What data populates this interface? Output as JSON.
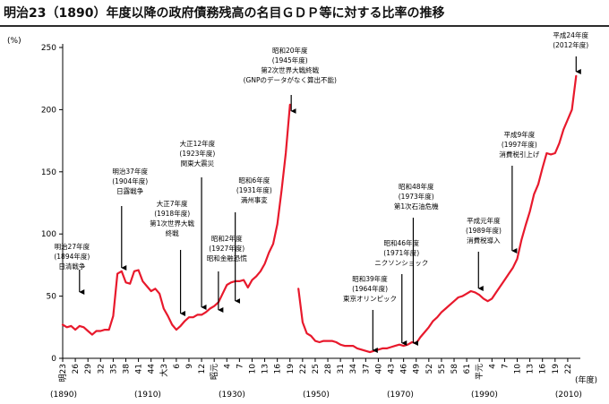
{
  "title": "明治23（1890）年度以降の政府債務残高の名目ＧＤＰ等に対する比率の推移",
  "chart_data": {
    "type": "line",
    "ylabel": "(%)",
    "xlabel": "(年度)",
    "ylim": [
      0,
      250
    ],
    "y_ticks": [
      0,
      50,
      100,
      150,
      200,
      250
    ],
    "x_ticks": [
      "明23",
      "26",
      "29",
      "32",
      "35",
      "38",
      "41",
      "44",
      "大3",
      "6",
      "9",
      "12",
      "昭元",
      "4",
      "7",
      "10",
      "13",
      "16",
      "19",
      "22",
      "25",
      "28",
      "31",
      "34",
      "37",
      "40",
      "43",
      "46",
      "49",
      "52",
      "55",
      "58",
      "61",
      "平元",
      "4",
      "7",
      "10",
      "13",
      "16",
      "19",
      "22"
    ],
    "decade_labels": [
      {
        "label": "(1890)",
        "year": 1890
      },
      {
        "label": "(1910)",
        "year": 1910
      },
      {
        "label": "(1930)",
        "year": 1930
      },
      {
        "label": "(1950)",
        "year": 1950
      },
      {
        "label": "(1970)",
        "year": 1970
      },
      {
        "label": "(1990)",
        "year": 1990
      },
      {
        "label": "(2010)",
        "year": 2010
      }
    ],
    "grid": false,
    "series": [
      {
        "color": "#e8192c",
        "segments": [
          {
            "x": [
              1890,
              1891,
              1892,
              1893,
              1894,
              1895,
              1896,
              1897,
              1898,
              1899,
              1900,
              1901,
              1902,
              1903,
              1904,
              1905,
              1906,
              1907,
              1908,
              1909,
              1910,
              1911,
              1912,
              1913,
              1914,
              1915,
              1916,
              1917,
              1918,
              1919,
              1920,
              1921,
              1922,
              1923,
              1924,
              1925,
              1926,
              1927,
              1928,
              1929,
              1930,
              1931,
              1932,
              1933,
              1934,
              1935,
              1936,
              1937,
              1938,
              1939,
              1940,
              1941,
              1942,
              1943,
              1944
            ],
            "y": [
              27,
              25,
              26,
              23,
              26,
              25,
              22,
              19,
              22,
              22,
              23,
              23,
              34,
              68,
              70,
              61,
              60,
              70,
              71,
              62,
              58,
              54,
              56,
              52,
              40,
              34,
              27,
              23,
              26,
              30,
              33,
              33,
              35,
              35,
              37,
              40,
              42,
              45,
              52,
              59,
              61,
              62,
              62,
              63,
              57,
              63,
              66,
              70,
              76,
              85,
              92,
              108,
              135,
              165,
              204
            ]
          },
          {
            "x": [
              1946,
              1947,
              1948,
              1949,
              1950,
              1951,
              1952,
              1953,
              1954,
              1955,
              1956,
              1957,
              1958,
              1959,
              1960,
              1961,
              1962,
              1963,
              1964,
              1965,
              1966,
              1967,
              1968,
              1969,
              1970,
              1971,
              1972,
              1973,
              1974,
              1975,
              1976,
              1977,
              1978,
              1979,
              1980,
              1981,
              1982,
              1983,
              1984,
              1985,
              1986,
              1987,
              1988,
              1989,
              1990,
              1991,
              1992,
              1993,
              1994,
              1995,
              1996,
              1997,
              1998,
              1999,
              2000,
              2001,
              2002,
              2003,
              2004,
              2005,
              2006,
              2007,
              2008,
              2009,
              2010,
              2011,
              2012
            ],
            "y": [
              56,
              29,
              20,
              18,
              14,
              13,
              14,
              14,
              14,
              13,
              11,
              10,
              10,
              10,
              8,
              7,
              6,
              5,
              6,
              7,
              8,
              8,
              9,
              10,
              11,
              10,
              11,
              13,
              12,
              17,
              21,
              25,
              30,
              33,
              37,
              40,
              43,
              46,
              49,
              50,
              52,
              54,
              53,
              51,
              48,
              46,
              48,
              53,
              58,
              63,
              68,
              73,
              80,
              95,
              107,
              118,
              132,
              140,
              153,
              165,
              164,
              165,
              173,
              184,
              192,
              200,
              227
            ]
          }
        ]
      }
    ],
    "annotations": [
      {
        "lines": [
          "明治27年度",
          "(1894年度)",
          "日清戦争"
        ],
        "year": 1894
      },
      {
        "lines": [
          "明治37年度",
          "(1904年度)",
          "日露戦争"
        ],
        "year": 1904
      },
      {
        "lines": [
          "大正7年度",
          "(1918年度)",
          "第1次世界大戦",
          "終戦"
        ],
        "year": 1918
      },
      {
        "lines": [
          "大正12年度",
          "(1923年度)",
          "関東大震災"
        ],
        "year": 1923
      },
      {
        "lines": [
          "昭和2年度",
          "(1927年度)",
          "昭和金融恐慌"
        ],
        "year": 1927
      },
      {
        "lines": [
          "昭和6年度",
          "(1931年度)",
          "満州事変"
        ],
        "year": 1931
      },
      {
        "lines": [
          "昭和20年度",
          "(1945年度)",
          "第2次世界大戦終戦",
          "(GNPのデータがなく算出不能)"
        ],
        "year": 1945
      },
      {
        "lines": [
          "昭和39年度",
          "(1964年度)",
          "東京オリンピック"
        ],
        "year": 1964
      },
      {
        "lines": [
          "昭和46年度",
          "(1971年度)",
          "ニクソンショック"
        ],
        "year": 1971
      },
      {
        "lines": [
          "昭和48年度",
          "(1973年度)",
          "第1次石油危機"
        ],
        "year": 1973
      },
      {
        "lines": [
          "平成元年度",
          "(1989年度)",
          "消費税導入"
        ],
        "year": 1989
      },
      {
        "lines": [
          "平成9年度",
          "(1997年度)",
          "消費税引上げ"
        ],
        "year": 1997
      },
      {
        "lines": [
          "平成24年度",
          "(2012年度)"
        ],
        "year": 2012
      }
    ]
  }
}
